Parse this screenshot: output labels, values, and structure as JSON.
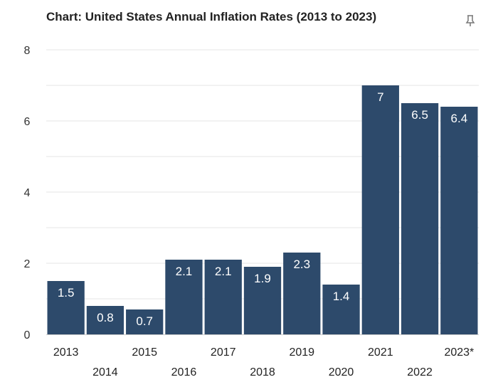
{
  "colors": {
    "bar": "#2d4a6b",
    "grid": "#e6e6e6",
    "axis": "#cccccc"
  },
  "chart_data": {
    "type": "bar",
    "title": "Chart: United States Annual Inflation Rates (2013 to 2023)",
    "categories": [
      "2013",
      "2014",
      "2015",
      "2016",
      "2017",
      "2018",
      "2019",
      "2020",
      "2021",
      "2022",
      "2023*"
    ],
    "values": [
      1.5,
      0.8,
      0.7,
      2.1,
      2.1,
      1.9,
      2.3,
      1.4,
      7,
      6.5,
      6.4
    ],
    "data_labels": [
      "1.5",
      "0.8",
      "0.7",
      "2.1",
      "2.1",
      "1.9",
      "2.3",
      "1.4",
      "7",
      "6.5",
      "6.4"
    ],
    "yticks": [
      "0",
      "2",
      "4",
      "6",
      "8"
    ],
    "ylim": [
      0,
      8
    ],
    "xlabel": "",
    "ylabel": "",
    "grid": true,
    "legend": "none"
  },
  "icons": {
    "pin": "pin-icon"
  }
}
